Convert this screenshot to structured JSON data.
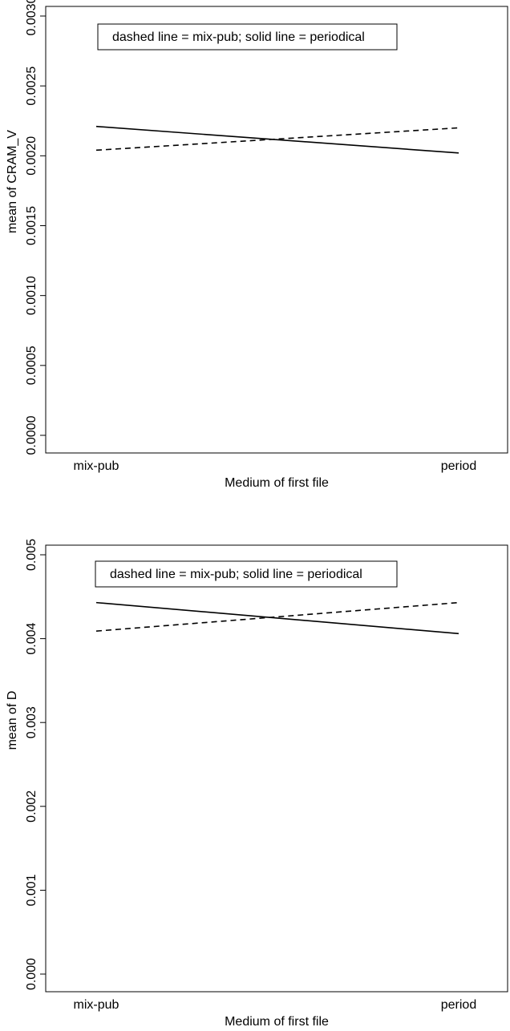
{
  "chart_data": [
    {
      "type": "line",
      "xlabel": "Medium of first file",
      "ylabel": "mean of  CRAM_V",
      "categories": [
        "mix-pub",
        "period"
      ],
      "ylim": [
        0,
        0.003
      ],
      "yticks": [
        "0.0000",
        "0.0005",
        "0.0010",
        "0.0015",
        "0.0020",
        "0.0025",
        "0.0030"
      ],
      "legend": {
        "text": "dashed line = mix-pub; solid line = periodical",
        "placement": "top-left"
      },
      "series": [
        {
          "name": "mix-pub",
          "style": "dashed",
          "values": [
            0.00204,
            0.0022
          ]
        },
        {
          "name": "periodical",
          "style": "solid",
          "values": [
            0.00221,
            0.00202
          ]
        }
      ],
      "grid": false
    },
    {
      "type": "line",
      "xlabel": "Medium of first file",
      "ylabel": "mean of  D",
      "categories": [
        "mix-pub",
        "period"
      ],
      "ylim": [
        0,
        0.005
      ],
      "yticks": [
        "0.000",
        "0.001",
        "0.002",
        "0.003",
        "0.004",
        "0.005"
      ],
      "legend": {
        "text": "dashed line = mix-pub; solid line = periodical",
        "placement": "top-left"
      },
      "series": [
        {
          "name": "mix-pub",
          "style": "dashed",
          "values": [
            0.00409,
            0.00443
          ]
        },
        {
          "name": "periodical",
          "style": "solid",
          "values": [
            0.00443,
            0.00406
          ]
        }
      ],
      "grid": false
    }
  ]
}
